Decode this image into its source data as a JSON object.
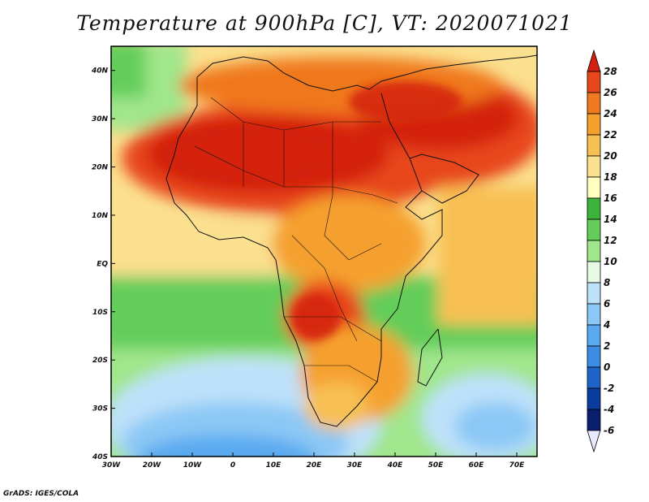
{
  "title": "Temperature at 900hPa [C], VT: 2020071021",
  "footer": "GrADS: IGES/COLA",
  "map": {
    "lon_range": [
      -30,
      75
    ],
    "lat_range": [
      -40,
      45
    ],
    "lat_labels": [
      {
        "lat": 40,
        "text": "40N"
      },
      {
        "lat": 30,
        "text": "30N"
      },
      {
        "lat": 20,
        "text": "20N"
      },
      {
        "lat": 10,
        "text": "10N"
      },
      {
        "lat": 0,
        "text": "EQ"
      },
      {
        "lat": -10,
        "text": "10S"
      },
      {
        "lat": -20,
        "text": "20S"
      },
      {
        "lat": -30,
        "text": "30S"
      },
      {
        "lat": -40,
        "text": "40S"
      }
    ],
    "lon_labels": [
      {
        "lon": -30,
        "text": "30W"
      },
      {
        "lon": -20,
        "text": "20W"
      },
      {
        "lon": -10,
        "text": "10W"
      },
      {
        "lon": 0,
        "text": "0"
      },
      {
        "lon": 10,
        "text": "10E"
      },
      {
        "lon": 20,
        "text": "20E"
      },
      {
        "lon": 30,
        "text": "30E"
      },
      {
        "lon": 40,
        "text": "40E"
      },
      {
        "lon": 50,
        "text": "50E"
      },
      {
        "lon": 60,
        "text": "60E"
      },
      {
        "lon": 70,
        "text": "70E"
      }
    ]
  },
  "colorbar": {
    "levels": [
      "28",
      "26",
      "24",
      "22",
      "20",
      "18",
      "16",
      "14",
      "12",
      "10",
      "8",
      "6",
      "4",
      "2",
      "0",
      "-2",
      "-4",
      "-6"
    ],
    "colors": [
      "#d42010",
      "#e8461c",
      "#f0781e",
      "#f5a02d",
      "#f8c052",
      "#fbe08f",
      "#ffffbf",
      "#3cb43c",
      "#64cd5a",
      "#a0e68c",
      "#e6fae6",
      "#bee1fa",
      "#8cc8f5",
      "#5aaaf0",
      "#3c8ce6",
      "#1e64c8",
      "#0a3ca0",
      "#0a1e6e",
      "#e8e8ff"
    ]
  },
  "field_colors": {
    "ocean_cold": "#5aaaf0",
    "ocean_cool": "#a0e68c",
    "ocean_mild": "#fbe08f",
    "land_hot": "#d42010",
    "land_warm": "#f0781e"
  }
}
